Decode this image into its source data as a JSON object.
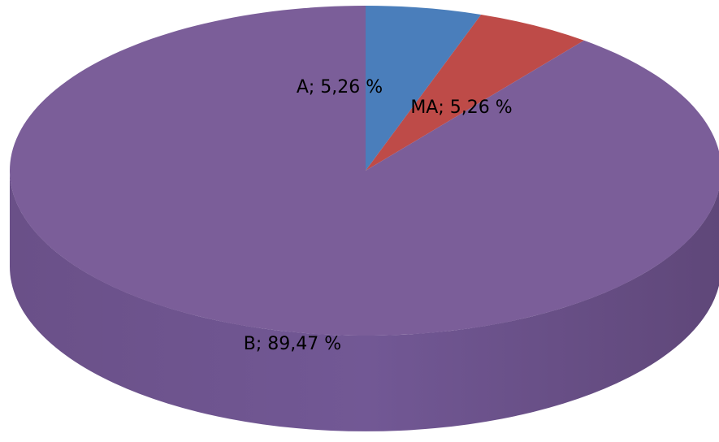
{
  "chart_data": {
    "type": "pie",
    "categories": [
      "A",
      "MA",
      "B"
    ],
    "values": [
      5.26,
      5.26,
      89.47
    ],
    "value_labels": [
      "A; 5,26 %",
      "MA; 5,26 %",
      "B; 89,47 %"
    ],
    "colors": [
      "#4a7ebb",
      "#be4b48",
      "#7b5e99"
    ]
  }
}
